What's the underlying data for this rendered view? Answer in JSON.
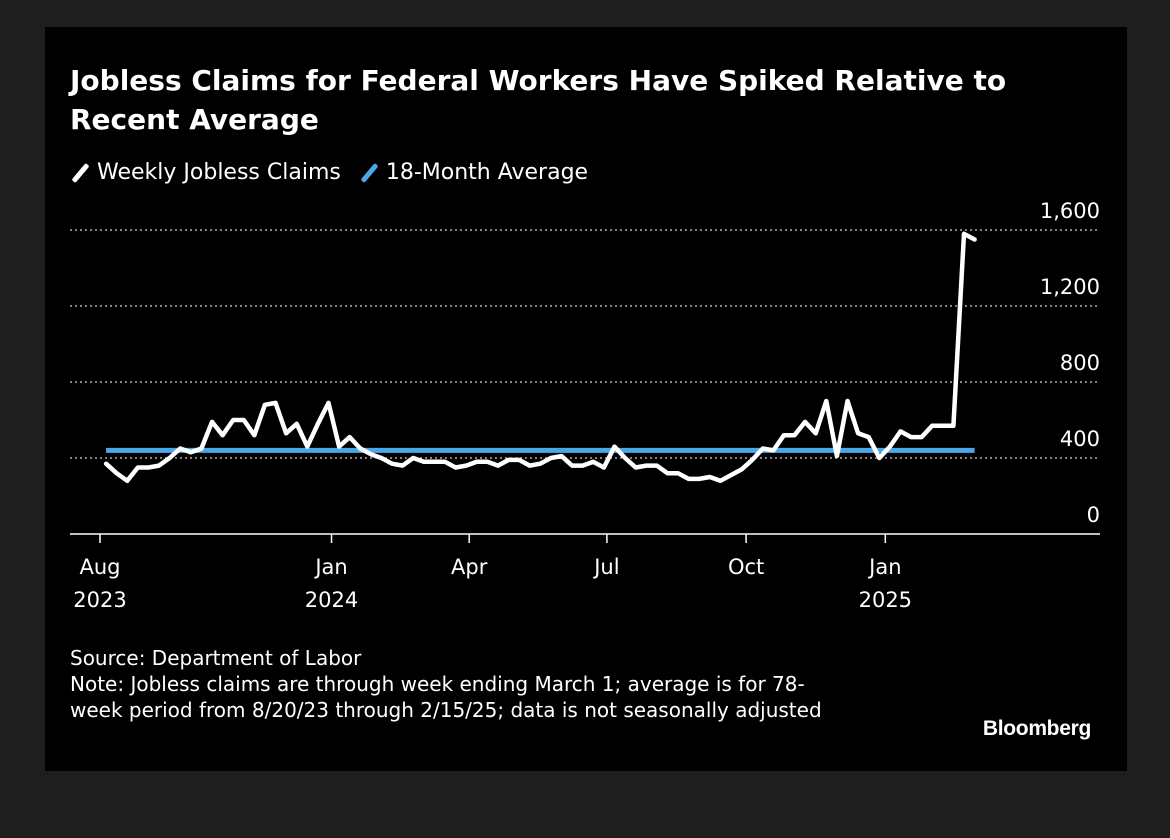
{
  "chart_data": {
    "type": "line",
    "title": "Jobless Claims for Federal Workers Have Spiked Relative to Recent Average",
    "legend": {
      "position": "top-left",
      "entries": [
        {
          "label": "Weekly Jobless Claims",
          "color": "#ffffff"
        },
        {
          "label": "18-Month Average",
          "color": "#4aa8e8"
        }
      ]
    },
    "x_ticks": [
      {
        "date": "2023-08-01",
        "label": "Aug",
        "year": "2023"
      },
      {
        "date": "2024-01-01",
        "label": "Jan",
        "year": "2024"
      },
      {
        "date": "2024-04-01",
        "label": "Apr",
        "year": ""
      },
      {
        "date": "2024-07-01",
        "label": "Jul",
        "year": ""
      },
      {
        "date": "2024-10-01",
        "label": "Oct",
        "year": ""
      },
      {
        "date": "2025-01-01",
        "label": "Jan",
        "year": "2025"
      }
    ],
    "x_range": [
      "2023-08-01",
      "2025-03-31"
    ],
    "y_ticks": [
      0,
      400,
      800,
      1200,
      1600
    ],
    "y_tick_labels": [
      "0",
      "400",
      "800",
      "1,200",
      "1,600"
    ],
    "ylim": [
      0,
      1600
    ],
    "grid": "horizontal dotted",
    "y_axis_side": "right",
    "series": [
      {
        "name": "Weekly Jobless Claims",
        "color": "#ffffff",
        "x": [
          "2023-08-05",
          "2023-08-12",
          "2023-08-19",
          "2023-08-26",
          "2023-09-02",
          "2023-09-09",
          "2023-09-16",
          "2023-09-23",
          "2023-09-30",
          "2023-10-07",
          "2023-10-14",
          "2023-10-21",
          "2023-10-28",
          "2023-11-04",
          "2023-11-11",
          "2023-11-18",
          "2023-11-25",
          "2023-12-02",
          "2023-12-09",
          "2023-12-16",
          "2023-12-23",
          "2023-12-30",
          "2024-01-06",
          "2024-01-13",
          "2024-01-20",
          "2024-01-27",
          "2024-02-03",
          "2024-02-10",
          "2024-02-17",
          "2024-02-24",
          "2024-03-02",
          "2024-03-09",
          "2024-03-16",
          "2024-03-23",
          "2024-03-30",
          "2024-04-06",
          "2024-04-13",
          "2024-04-20",
          "2024-04-27",
          "2024-05-04",
          "2024-05-11",
          "2024-05-18",
          "2024-05-25",
          "2024-06-01",
          "2024-06-08",
          "2024-06-15",
          "2024-06-22",
          "2024-06-29",
          "2024-07-06",
          "2024-07-13",
          "2024-07-20",
          "2024-07-27",
          "2024-08-03",
          "2024-08-10",
          "2024-08-17",
          "2024-08-24",
          "2024-08-31",
          "2024-09-07",
          "2024-09-14",
          "2024-09-21",
          "2024-09-28",
          "2024-10-05",
          "2024-10-12",
          "2024-10-19",
          "2024-10-26",
          "2024-11-02",
          "2024-11-09",
          "2024-11-16",
          "2024-11-23",
          "2024-11-30",
          "2024-12-07",
          "2024-12-14",
          "2024-12-21",
          "2024-12-28",
          "2025-01-04",
          "2025-01-11",
          "2025-01-18",
          "2025-01-25",
          "2025-02-01",
          "2025-02-08",
          "2025-02-15",
          "2025-02-22",
          "2025-03-01"
        ],
        "values": [
          370,
          320,
          280,
          350,
          350,
          360,
          400,
          450,
          430,
          450,
          590,
          520,
          600,
          600,
          520,
          680,
          690,
          530,
          580,
          460,
          580,
          690,
          460,
          510,
          450,
          420,
          400,
          370,
          360,
          400,
          380,
          380,
          380,
          350,
          360,
          380,
          380,
          360,
          390,
          390,
          360,
          370,
          400,
          410,
          360,
          360,
          380,
          350,
          460,
          400,
          350,
          360,
          360,
          320,
          320,
          290,
          290,
          300,
          280,
          310,
          340,
          390,
          450,
          440,
          520,
          520,
          590,
          530,
          700,
          410,
          700,
          530,
          510,
          400,
          460,
          540,
          510,
          510,
          570,
          570,
          570,
          1580,
          1550
        ]
      },
      {
        "name": "18-Month Average",
        "color": "#4aa8e8",
        "x": [
          "2023-08-05",
          "2025-03-01"
        ],
        "values": [
          440,
          440
        ]
      }
    ]
  },
  "footer": {
    "source": "Source: Department of Labor",
    "note": "Note: Jobless claims are through week ending March 1; average is for 78-week period from 8/20/23 through 2/15/25; data is not seasonally adjusted"
  },
  "brand": "Bloomberg"
}
